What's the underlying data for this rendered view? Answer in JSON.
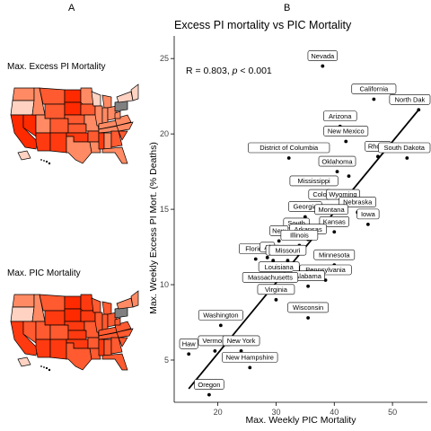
{
  "panel_a": {
    "letter": "A",
    "maps": [
      {
        "title": "Max. Excess PI Mortality"
      },
      {
        "title": "Max. PIC Mortality"
      }
    ],
    "colors": {
      "low": "#ffd2c2",
      "mid": "#ff8a63",
      "high": "#ff2a00",
      "na": "#808080",
      "stroke": "#000000"
    }
  },
  "panel_b": {
    "letter": "B"
  },
  "chart_data": {
    "type": "scatter",
    "title": "Excess PI mortality vs PIC Mortality",
    "xlabel": "Max. Weekly PIC Mortality",
    "ylabel": "Max. Weekly Excess PI Mort. (% Deaths)",
    "xlim": [
      12.5,
      56
    ],
    "ylim": [
      2.2,
      26.5
    ],
    "xticks": [
      20,
      30,
      40,
      50
    ],
    "yticks": [
      5,
      10,
      15,
      20,
      25
    ],
    "grid": false,
    "annotation": {
      "prefix": "R = 0.803,",
      "p_label": "p",
      "suffix": " < 0.001"
    },
    "fit_line": {
      "x": [
        15,
        54.5
      ],
      "y": [
        3.1,
        21.6
      ]
    },
    "points": [
      {
        "label": "Nevada",
        "x": 38,
        "y": 24.5
      },
      {
        "label": "California",
        "x": 46.8,
        "y": 22.3
      },
      {
        "label": "North Dak",
        "x": 54.5,
        "y": 21.6
      },
      {
        "label": "Arizona",
        "x": 41,
        "y": 20.5
      },
      {
        "label": "New Mexico",
        "x": 42,
        "y": 19.5
      },
      {
        "label": "Rhode",
        "x": 47.5,
        "y": 18.5
      },
      {
        "label": "South Dakota",
        "x": 52.5,
        "y": 18.4
      },
      {
        "label": "District of Columbia",
        "x": 32.2,
        "y": 18.4
      },
      {
        "label": "Oklahoma",
        "x": 40.5,
        "y": 17.5
      },
      {
        "label": "",
        "x": 40.2,
        "y": 18.1
      },
      {
        "label": "",
        "x": 42.5,
        "y": 17.2
      },
      {
        "label": "Mississippi",
        "x": 36.5,
        "y": 16.2
      },
      {
        "label": "Colo",
        "x": 37.5,
        "y": 15.3
      },
      {
        "label": "Wyoming",
        "x": 41.5,
        "y": 15.3
      },
      {
        "label": "Nebraska",
        "x": 44,
        "y": 14.8
      },
      {
        "label": "Georgia",
        "x": 35,
        "y": 14.5
      },
      {
        "label": "Montana",
        "x": 39.5,
        "y": 14.3
      },
      {
        "label": "Iowa",
        "x": 45.8,
        "y": 14
      },
      {
        "label": "Kansas",
        "x": 40,
        "y": 13.5
      },
      {
        "label": "South",
        "x": 33.5,
        "y": 13.4
      },
      {
        "label": "Arkansas",
        "x": 35.5,
        "y": 13
      },
      {
        "label": "New",
        "x": 30.5,
        "y": 12.9
      },
      {
        "label": "Illinois",
        "x": 34,
        "y": 12.6
      },
      {
        "label": "Florida",
        "x": 26.5,
        "y": 11.7
      },
      {
        "label": "Al",
        "x": 28.5,
        "y": 11.8
      },
      {
        "label": "Mi",
        "x": 29.5,
        "y": 11.6
      },
      {
        "label": "Missouri",
        "x": 32,
        "y": 11.6
      },
      {
        "label": "Minnesota",
        "x": 40,
        "y": 11.3
      },
      {
        "label": "Louisiana",
        "x": 30.5,
        "y": 10.5
      },
      {
        "label": "Pennsylvania",
        "x": 38.5,
        "y": 10.3
      },
      {
        "label": "Alabama",
        "x": 35.5,
        "y": 9.9
      },
      {
        "label": "Massachusetts",
        "x": 29,
        "y": 9.8
      },
      {
        "label": "Virginia",
        "x": 30,
        "y": 9.0
      },
      {
        "label": "Wisconsin",
        "x": 35.5,
        "y": 7.8
      },
      {
        "label": "Washington",
        "x": 20.5,
        "y": 7.3
      },
      {
        "label": "Vermont",
        "x": 19.5,
        "y": 5.6
      },
      {
        "label": "New York",
        "x": 24,
        "y": 5.6
      },
      {
        "label": "New Hampshire",
        "x": 25.5,
        "y": 4.5
      },
      {
        "label": "Haw",
        "x": 15,
        "y": 5.4
      },
      {
        "label": "Oregon",
        "x": 18.5,
        "y": 2.7
      }
    ]
  }
}
